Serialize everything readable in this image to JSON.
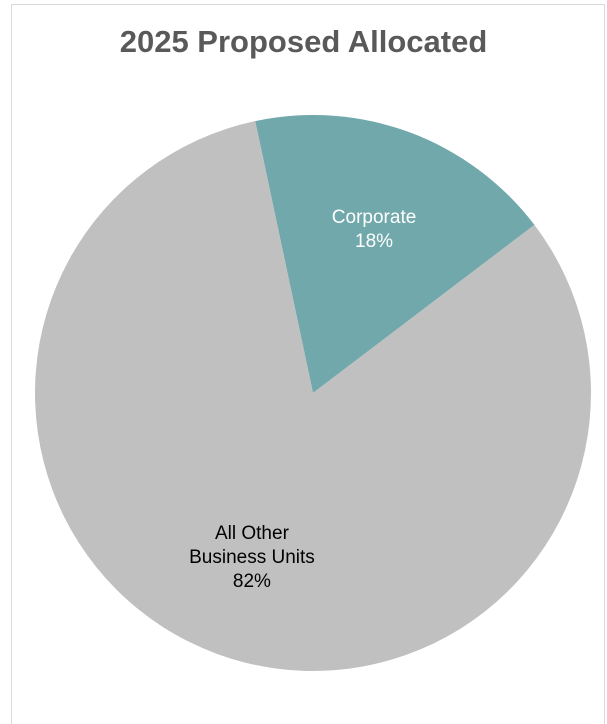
{
  "chart_data": {
    "type": "pie",
    "title": "2025 Proposed Allocated",
    "slices": [
      {
        "label_lines": [
          "Corporate"
        ],
        "percent_label": "18%",
        "value": 18,
        "color": "#71a8ab",
        "label_color": "#ffffff"
      },
      {
        "label_lines": [
          "All Other",
          "Business Units"
        ],
        "percent_label": "82%",
        "value": 82,
        "color": "#c0c0c0",
        "label_color": "#000000"
      }
    ],
    "legend": "none",
    "data_labels": "inside"
  }
}
